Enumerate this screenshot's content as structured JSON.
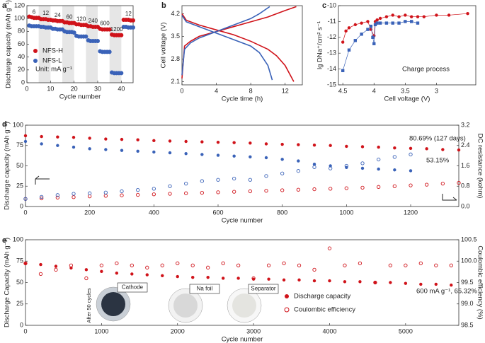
{
  "chart_data": [
    {
      "type": "scatter",
      "panel": "a",
      "xlabel": "Cycle number",
      "ylabel": "Discharge capacity (mAh g⁻¹)",
      "xlim": [
        0,
        45
      ],
      "xticks": [
        0,
        10,
        20,
        30,
        40
      ],
      "ylim": [
        0,
        120
      ],
      "yticks": [
        0,
        20,
        40,
        60,
        80,
        100,
        120
      ],
      "rate_labels": [
        "6",
        "12",
        "24",
        "60",
        "120",
        "240",
        "600",
        "1200",
        "12"
      ],
      "annotations": [
        "Unit: mA g⁻¹"
      ],
      "x": [
        1,
        2,
        3,
        4,
        5,
        6,
        7,
        8,
        9,
        10,
        11,
        12,
        13,
        14,
        15,
        16,
        17,
        18,
        19,
        20,
        21,
        22,
        23,
        24,
        25,
        26,
        27,
        28,
        29,
        30,
        31,
        32,
        33,
        34,
        35,
        36,
        37,
        38,
        39,
        40,
        41,
        42,
        43,
        44,
        45
      ],
      "series": [
        {
          "name": "NFS-H",
          "color": "#d0131a",
          "marker": "filled",
          "values": [
            103,
            102,
            101,
            101,
            101,
            99,
            99,
            99,
            98,
            98,
            97,
            97,
            96,
            96,
            96,
            94,
            94,
            93,
            93,
            93,
            91,
            91,
            90,
            90,
            90,
            88,
            88,
            87,
            87,
            87,
            84,
            83,
            83,
            83,
            83,
            75,
            74,
            74,
            74,
            74,
            98,
            98,
            98,
            97,
            97
          ]
        },
        {
          "name": "NFS-L",
          "color": "#3a62b8",
          "marker": "filled",
          "values": [
            89,
            88,
            88,
            88,
            88,
            87,
            87,
            86,
            86,
            86,
            84,
            84,
            83,
            83,
            83,
            80,
            79,
            79,
            79,
            78,
            73,
            72,
            72,
            72,
            72,
            66,
            65,
            65,
            65,
            65,
            49,
            48,
            48,
            48,
            48,
            16,
            15,
            15,
            15,
            15,
            87,
            87,
            86,
            86,
            86
          ]
        }
      ]
    },
    {
      "type": "line",
      "panel": "b",
      "xlabel": "Cycle time (h)",
      "ylabel": "Cell voltage (V)",
      "xlim": [
        0,
        14
      ],
      "xticks": [
        0,
        4,
        8,
        12
      ],
      "ylim": [
        2.0,
        4.45
      ],
      "yticks": [
        2.1,
        2.8,
        3.5,
        4.2
      ],
      "series": [
        {
          "color": "#d0131a",
          "x": [
            0,
            0.3,
            1,
            2,
            4,
            6,
            8,
            10,
            12,
            13.3
          ],
          "values": [
            2.2,
            3.2,
            3.35,
            3.5,
            3.65,
            3.8,
            3.95,
            4.1,
            4.3,
            4.42
          ]
        },
        {
          "color": "#d0131a",
          "x": [
            0,
            0.5,
            2,
            4,
            6,
            8,
            10,
            11,
            12,
            13
          ],
          "values": [
            4.2,
            4.0,
            3.85,
            3.7,
            3.55,
            3.35,
            3.1,
            2.9,
            2.6,
            2.1
          ]
        },
        {
          "color": "#3a62b8",
          "x": [
            0,
            0.3,
            1,
            2,
            4,
            6,
            8,
            9,
            10.2
          ],
          "values": [
            2.3,
            3.1,
            3.3,
            3.45,
            3.65,
            3.85,
            4.05,
            4.2,
            4.42
          ]
        },
        {
          "color": "#3a62b8",
          "x": [
            0,
            0.5,
            2,
            4,
            6,
            8,
            9,
            10,
            10.5
          ],
          "values": [
            4.15,
            3.95,
            3.8,
            3.6,
            3.4,
            3.2,
            3.0,
            2.6,
            2.15
          ]
        }
      ]
    },
    {
      "type": "scatter",
      "panel": "c",
      "connect": true,
      "xlabel": "Cell voltage (V)",
      "ylabel": "lg DNa⁺/cm² s⁻¹",
      "xlim": [
        4.57,
        2.37
      ],
      "xticks": [
        4.5,
        4.0,
        3.5,
        3.0
      ],
      "ylim": [
        -15,
        -10
      ],
      "yticks": [
        -15,
        -14,
        -13,
        -12,
        -11,
        -10
      ],
      "annotations": [
        "Charge process"
      ],
      "series": [
        {
          "color": "#d0131a",
          "marker": "filled",
          "x": [
            4.5,
            4.45,
            4.4,
            4.3,
            4.2,
            4.1,
            4.05,
            4.0,
            3.98,
            3.95,
            3.9,
            3.8,
            3.7,
            3.6,
            3.5,
            3.4,
            3.3,
            3.2,
            3.0,
            2.8,
            2.5
          ],
          "values": [
            -12.3,
            -11.6,
            -11.4,
            -11.2,
            -11.1,
            -11.0,
            -11.5,
            -11.9,
            -11.0,
            -10.9,
            -10.8,
            -10.7,
            -10.6,
            -10.7,
            -10.6,
            -10.7,
            -10.7,
            -10.7,
            -10.6,
            -10.6,
            -10.5
          ]
        },
        {
          "color": "#3a62b8",
          "marker": "square",
          "x": [
            4.5,
            4.4,
            4.3,
            4.2,
            4.1,
            4.05,
            4.02,
            4.0,
            3.98,
            3.95,
            3.9,
            3.8,
            3.7,
            3.6,
            3.5,
            3.4,
            3.3
          ],
          "values": [
            -14.1,
            -12.8,
            -12.2,
            -11.8,
            -11.5,
            -11.3,
            -12.0,
            -12.4,
            -11.2,
            -11.1,
            -11.1,
            -11.1,
            -11.1,
            -11.1,
            -11.0,
            -11.0,
            -11.1
          ]
        }
      ]
    },
    {
      "type": "scatter",
      "panel": "d",
      "xlabel": "Cycle number",
      "ylabel": "Discharge capacity (mAh g⁻¹)",
      "y2label": "DC resistance (kohm)",
      "xlim": [
        0,
        1350
      ],
      "xticks": [
        0,
        200,
        400,
        600,
        800,
        1000,
        1200
      ],
      "ylim": [
        0,
        100
      ],
      "yticks": [
        0,
        25,
        50,
        75,
        100
      ],
      "y2lim": [
        0,
        3.2
      ],
      "y2ticks": [
        {
          "value": 0,
          "label": "0.0"
        },
        0.8,
        1.6,
        2.4,
        3.2
      ],
      "annotations": [
        "80.69% (127 days)",
        "53.15%"
      ],
      "series": [
        {
          "color": "#d0131a",
          "marker": "filled",
          "x": [
            0,
            50,
            100,
            150,
            200,
            250,
            300,
            350,
            400,
            450,
            500,
            550,
            600,
            650,
            700,
            750,
            800,
            850,
            900,
            950,
            1000,
            1050,
            1100,
            1150,
            1200,
            1250,
            1300,
            1350
          ],
          "values": [
            87,
            86,
            85.5,
            85,
            84,
            83,
            82.5,
            82,
            81,
            80.5,
            80,
            79.5,
            79,
            78.5,
            78,
            77,
            76.5,
            76,
            75.5,
            75,
            74,
            73.5,
            73,
            72,
            71.5,
            71,
            70,
            69.5
          ]
        },
        {
          "color": "#3a62b8",
          "marker": "filled",
          "x": [
            0,
            50,
            100,
            150,
            200,
            250,
            300,
            350,
            400,
            450,
            500,
            550,
            600,
            650,
            700,
            750,
            800,
            850,
            900,
            950,
            1000,
            1050,
            1100,
            1150,
            1200
          ],
          "values": [
            80,
            77,
            75,
            73,
            71,
            70,
            69,
            68,
            67,
            66,
            65,
            64,
            63,
            62,
            61,
            60,
            58,
            56,
            52,
            50,
            48,
            47,
            46,
            45,
            44
          ]
        },
        {
          "color": "#d0131a",
          "marker": "open",
          "axis": "y2",
          "x": [
            0,
            50,
            100,
            150,
            200,
            250,
            300,
            350,
            400,
            450,
            500,
            550,
            600,
            650,
            700,
            750,
            800,
            850,
            900,
            950,
            1000,
            1050,
            1100,
            1150,
            1200,
            1250,
            1300,
            1350
          ],
          "values": [
            0.3,
            0.32,
            0.35,
            0.37,
            0.4,
            0.42,
            0.44,
            0.46,
            0.48,
            0.5,
            0.52,
            0.54,
            0.56,
            0.58,
            0.6,
            0.62,
            0.64,
            0.66,
            0.68,
            0.7,
            0.72,
            0.74,
            0.77,
            0.8,
            0.83,
            0.86,
            0.9,
            0.93
          ]
        },
        {
          "color": "#3a62b8",
          "marker": "open",
          "axis": "y2",
          "x": [
            0,
            50,
            100,
            150,
            200,
            250,
            300,
            350,
            400,
            450,
            500,
            550,
            600,
            650,
            700,
            750,
            800,
            850,
            900,
            950,
            1000,
            1050,
            1100,
            1150,
            1200
          ],
          "values": [
            0.3,
            0.38,
            0.45,
            0.5,
            0.52,
            0.55,
            0.6,
            0.65,
            0.7,
            0.8,
            0.9,
            1.0,
            1.05,
            1.1,
            1.05,
            1.2,
            1.3,
            1.4,
            1.55,
            1.5,
            1.6,
            1.7,
            1.85,
            1.95,
            2.05
          ]
        }
      ]
    },
    {
      "type": "scatter",
      "panel": "e",
      "xlabel": "Cycle number",
      "ylabel": "Discharge Capacity (mAh g⁻¹)",
      "y2label": "Coulombic efficiency (%)",
      "xlim": [
        0,
        5700
      ],
      "xticks": [
        0,
        1000,
        2000,
        3000,
        4000,
        5000
      ],
      "ylim": [
        0,
        100
      ],
      "yticks": [
        0,
        25,
        50,
        75,
        100
      ],
      "y2lim": [
        98.5,
        100.5
      ],
      "y2ticks": [
        98.5,
        {
          "value": 99,
          "label": "99.0"
        },
        99.5,
        {
          "value": 100,
          "label": "100.0"
        },
        100.5
      ],
      "annotations": [
        "600 mA g⁻¹, 65.32%"
      ],
      "photos": [
        "Cathode",
        "Na foil",
        "Separator"
      ],
      "photo_note": "After 50 cycles",
      "x": [
        0,
        200,
        400,
        600,
        800,
        1000,
        1200,
        1400,
        1600,
        1800,
        2000,
        2200,
        2400,
        2600,
        2800,
        3000,
        3200,
        3400,
        3600,
        3800,
        4000,
        4200,
        4400,
        4600,
        4800,
        5000,
        5200,
        5400,
        5600
      ],
      "series": [
        {
          "name": "Discharge capacity",
          "color": "#d0131a",
          "marker": "filled",
          "values": [
            72,
            71,
            69,
            67,
            65,
            63,
            61,
            60,
            59,
            58,
            57,
            56,
            56,
            55,
            55,
            54,
            54,
            53,
            53,
            52,
            52,
            51,
            51,
            50,
            50,
            49,
            48,
            48,
            47
          ]
        },
        {
          "name": "Coulombic efficiency",
          "color": "#d0131a",
          "marker": "open",
          "axis": "y2",
          "values": [
            99.95,
            99.7,
            99.8,
            99.9,
            99.6,
            99.9,
            99.95,
            99.9,
            99.85,
            99.9,
            99.95,
            99.9,
            99.85,
            99.95,
            99.9,
            99.6,
            99.9,
            99.95,
            99.9,
            99.8,
            100.3,
            99.9,
            99.95,
            99.5,
            99.9,
            99.9,
            99.95,
            99.9,
            99.9
          ]
        }
      ]
    }
  ]
}
